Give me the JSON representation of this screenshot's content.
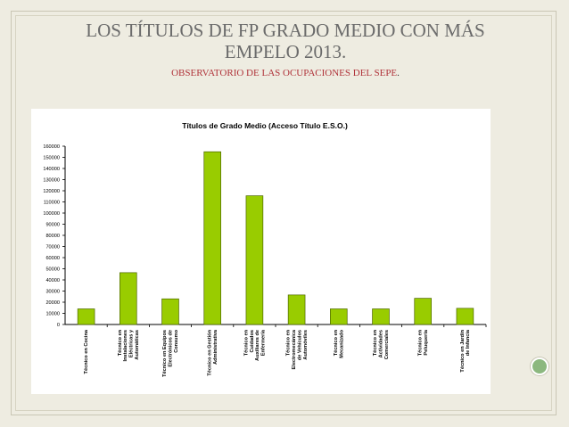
{
  "slide": {
    "title_line1": "LOS TÍTULOS DE FP GRADO MEDIO CON MÁS",
    "title_line2": "EMPELO 2013.",
    "subtitle": "OBSERVATORIO DE LAS OCUPACIONES DEL SEPE",
    "subtitle_dot": "."
  },
  "colors": {
    "background": "#eeece1",
    "bar_fill": "#99cc00",
    "bar_stroke": "#4d6600",
    "subtitle": "#b0333a"
  },
  "chart_data": {
    "type": "bar",
    "title": "Títulos de Grado Medio (Acceso Título E.S.O.)",
    "xlabel": "",
    "ylabel": "",
    "ylim": [
      0,
      160000
    ],
    "yticks": [
      0,
      10000,
      20000,
      30000,
      40000,
      50000,
      60000,
      70000,
      80000,
      90000,
      100000,
      110000,
      120000,
      130000,
      140000,
      150000,
      160000
    ],
    "grid": false,
    "legend": "none",
    "categories": [
      [
        "Técnico en Cocina"
      ],
      [
        "Técnico en",
        "Instalaciones",
        "Eléctricas y",
        "Automáticas"
      ],
      [
        "Técnico en Equipos",
        "Electrónicos de",
        "Consumo"
      ],
      [
        "Técnico en Gestión",
        "Administrativa"
      ],
      [
        "Técnico en",
        "Cuidados",
        "Auxiliares de",
        "Enfermería"
      ],
      [
        "Técnico en",
        "Electromecánica",
        "de Vehículos",
        "Automóviles"
      ],
      [
        "Técnico en",
        "Mecanizado"
      ],
      [
        "Técnico en",
        "Actividades",
        "Comerciales"
      ],
      [
        "Técnico en",
        "Peluquería"
      ],
      [
        "Técnico en Jardín",
        "de Infancia"
      ]
    ],
    "values": [
      14000,
      46500,
      23000,
      155000,
      115500,
      26500,
      14000,
      14000,
      23500,
      14500
    ]
  }
}
